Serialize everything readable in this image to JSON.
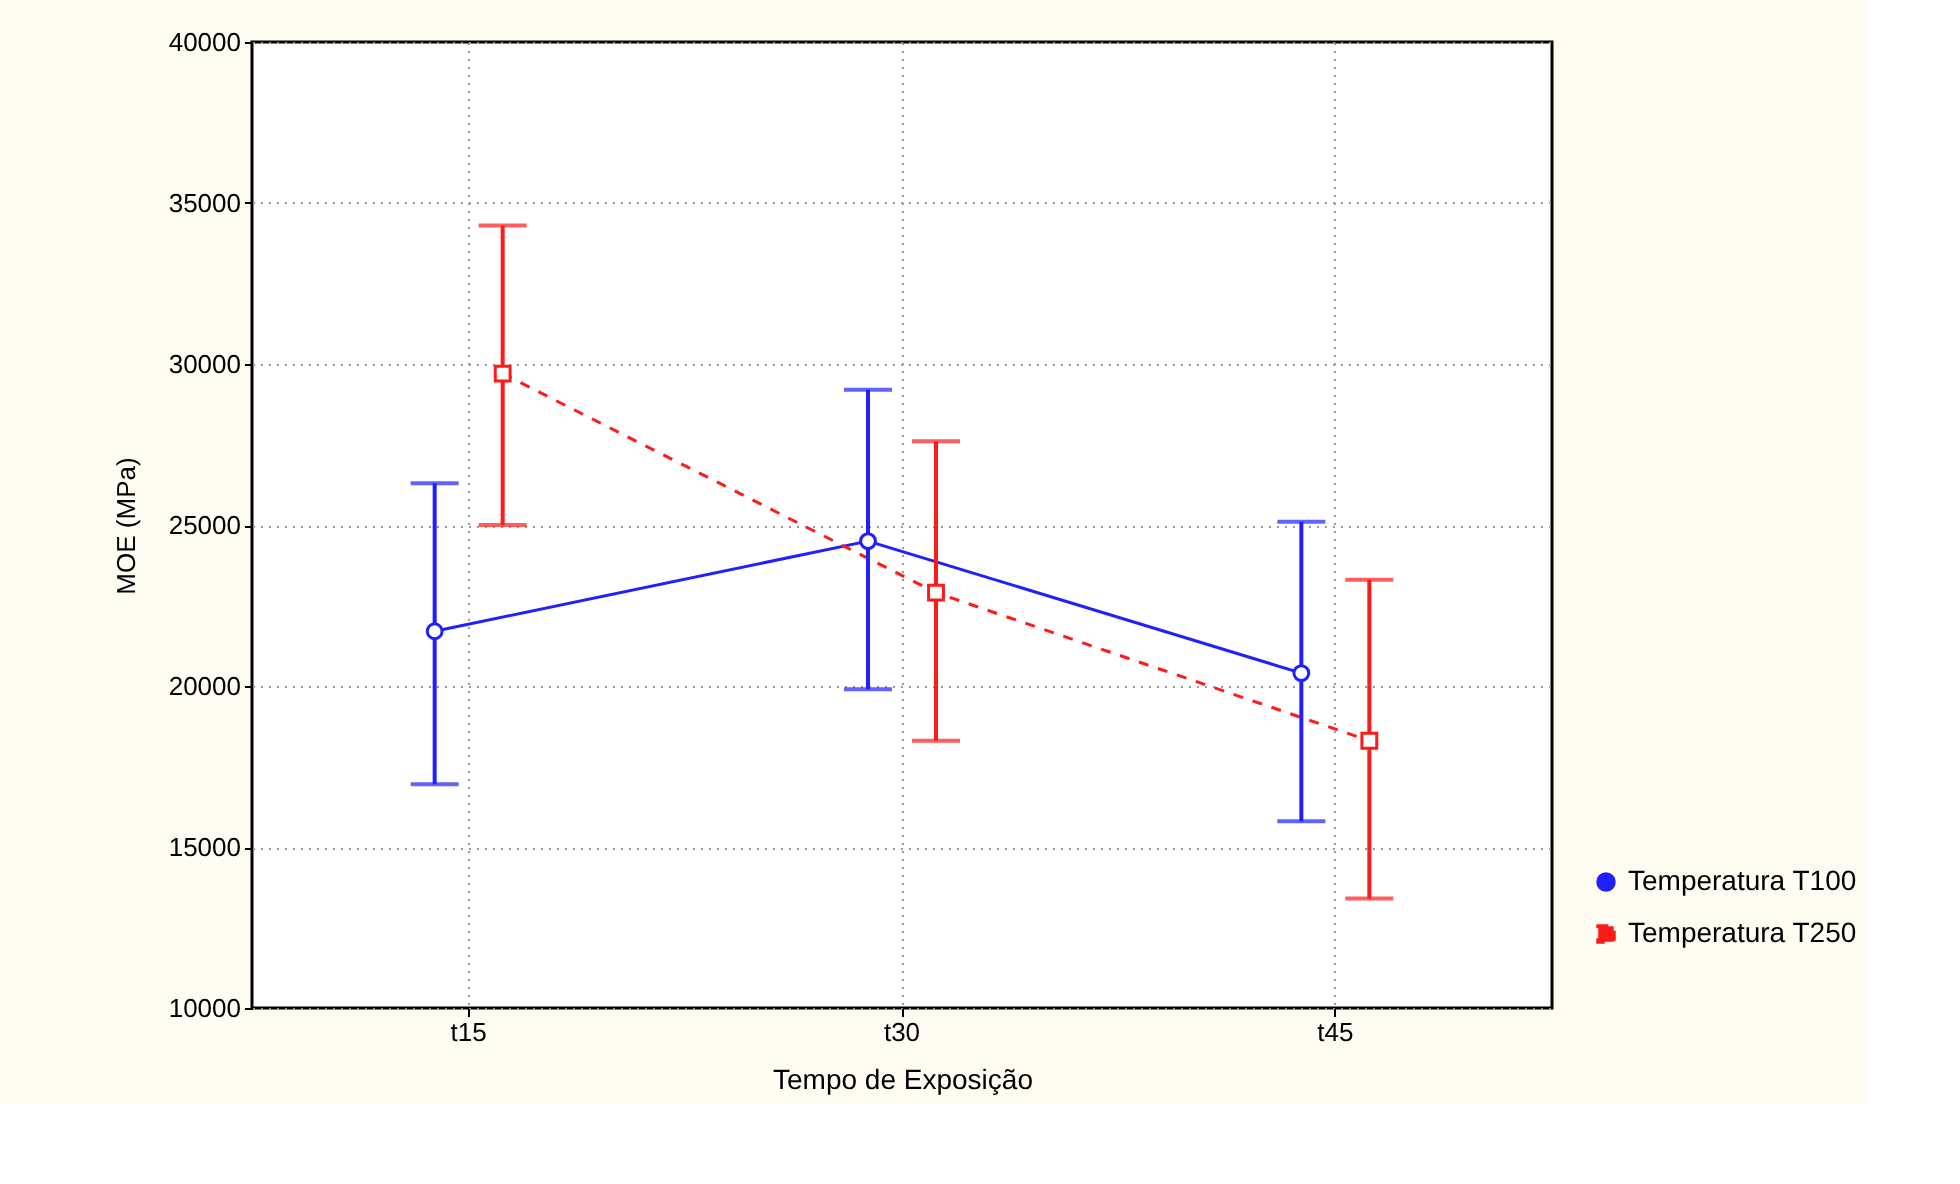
{
  "chart_data": {
    "type": "line",
    "xlabel": "Tempo de Exposição",
    "ylabel": "MOE (MPa)",
    "categories": [
      "t15",
      "t30",
      "t45"
    ],
    "series": [
      {
        "name": "Temperatura T100",
        "color": "#1f1fff",
        "values": [
          21700,
          24500,
          20400
        ],
        "errors": [
          [
            16950,
            26300
          ],
          [
            19900,
            29200
          ],
          [
            15800,
            25100
          ]
        ],
        "marker": "circle",
        "line_style": "solid"
      },
      {
        "name": "Temperatura T250",
        "color": "#ff1a1a",
        "values": [
          29700,
          22900,
          18300
        ],
        "errors": [
          [
            25000,
            34300
          ],
          [
            18300,
            27600
          ],
          [
            13400,
            23300
          ]
        ],
        "marker": "square",
        "line_style": "dashed"
      }
    ],
    "ylim": [
      10000,
      40000
    ],
    "yticks": [
      10000,
      15000,
      20000,
      25000,
      30000,
      35000,
      40000
    ],
    "grid": true,
    "legend": "bottom right"
  }
}
